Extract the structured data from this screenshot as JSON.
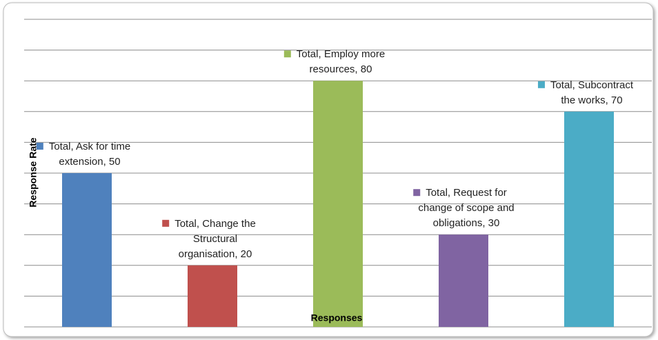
{
  "chart_data": {
    "type": "bar",
    "series_name": "Total",
    "categories": [
      "Ask for time extension",
      "Change the Structural organisation",
      "Employ more resources",
      "Request for change of scope and obligations",
      "Subcontract the works"
    ],
    "values": [
      50,
      20,
      80,
      30,
      70
    ],
    "value_labels": [
      "Total, Ask for time extension, 50",
      "Total, Change the Structural organisation, 20",
      "Total, Employ more resources, 80",
      "Total, Request for change of scope and obligations, 30",
      "Total, Subcontract the works, 70"
    ],
    "colors": [
      "#4f81bd",
      "#c0504d",
      "#9bbb59",
      "#8064a2",
      "#4bacc6"
    ],
    "xlabel": "Responses",
    "ylabel": "Response Rate",
    "ylim": [
      0,
      100
    ],
    "yticks": [
      0,
      10,
      20,
      30,
      40,
      50,
      60,
      70,
      80,
      90,
      100
    ],
    "grid": true
  }
}
